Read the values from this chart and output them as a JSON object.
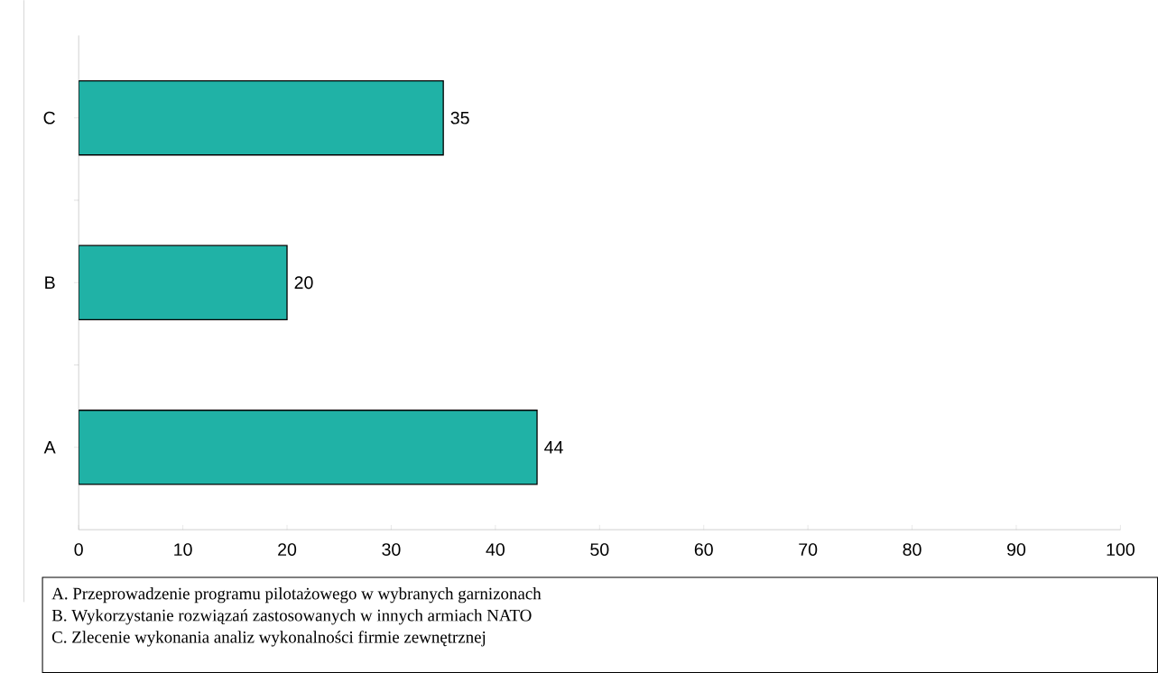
{
  "chart_data": {
    "type": "bar",
    "orientation": "horizontal",
    "categories": [
      "C",
      "B",
      "A"
    ],
    "values": [
      35,
      20,
      44
    ],
    "color": "#20b2a6",
    "xlim": [
      0,
      100
    ],
    "xticks": [
      0,
      10,
      20,
      30,
      40,
      50,
      60,
      70,
      80,
      90,
      100
    ],
    "data_labels": true,
    "grid": false,
    "annotations": [
      "A. Przeprowadzenie programu pilotażowego w wybranych garnizonach",
      "B. Wykorzystanie rozwiązań zastosowanych w innych armiach NATO",
      "C. Zlecenie wykonania analiz wykonalności firmie zewnętrznej"
    ]
  }
}
